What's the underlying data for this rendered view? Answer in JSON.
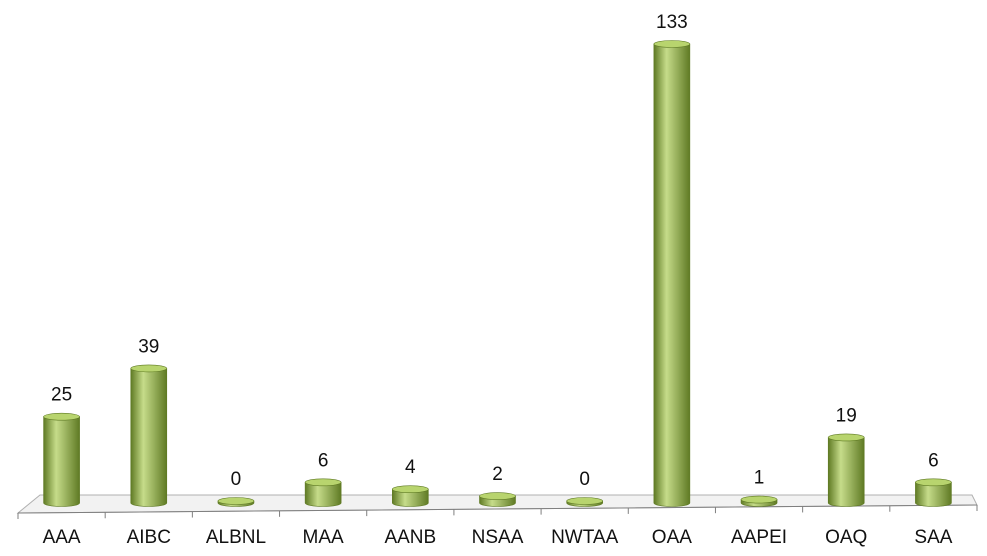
{
  "chart_data": {
    "type": "bar",
    "style": "3d-cylinder",
    "categories": [
      "AAA",
      "AIBC",
      "ALBNL",
      "MAA",
      "AANB",
      "NSAA",
      "NWTAA",
      "OAA",
      "AAPEI",
      "OAQ",
      "SAA"
    ],
    "values": [
      25,
      39,
      0,
      6,
      4,
      2,
      0,
      133,
      1,
      19,
      6
    ],
    "value_labels": [
      "25",
      "39",
      "0",
      "6",
      "4",
      "2",
      "0",
      "133",
      "1",
      "19",
      "6"
    ],
    "title": "",
    "xlabel": "",
    "ylabel": "",
    "ylim": [
      0,
      133
    ],
    "grid": false,
    "legend": "none",
    "colors": {
      "bar_light": "#c6dc8a",
      "bar_mid": "#9bbb59",
      "bar_dark": "#5f7a24",
      "bar_top": "#b8d46e",
      "floor_fill": "#f2f2f2",
      "floor_stroke": "#b0b0b0"
    }
  }
}
